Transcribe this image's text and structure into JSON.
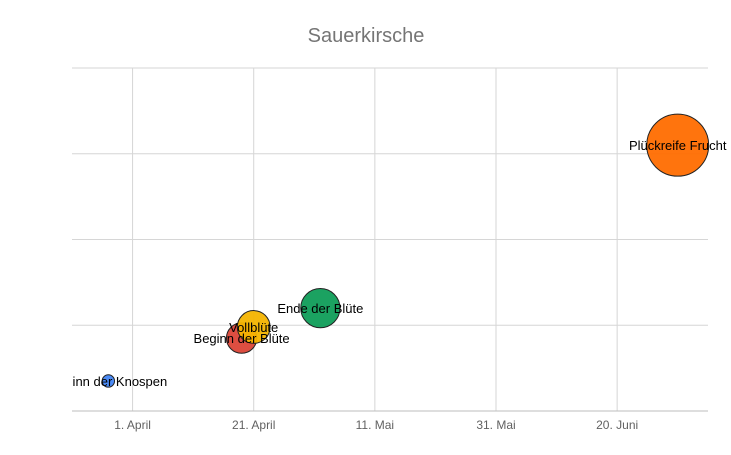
{
  "chart_data": {
    "type": "scatter",
    "subtype": "bubble",
    "title": "Sauerkirsche",
    "xlabel": "",
    "ylabel": "",
    "x_ticks": [
      "1. April",
      "21. April",
      "11. Mai",
      "31. Mai",
      "20. Juni"
    ],
    "xlim": [
      "2020-03-22",
      "2020-07-05"
    ],
    "ylim": [
      0,
      4
    ],
    "y_gridlines": [
      0,
      1,
      2,
      3,
      4
    ],
    "grid": true,
    "legend": "none",
    "points": [
      {
        "label": "Beginn der Knospen",
        "x": "2020-03-28",
        "y": 0.35,
        "size": 1,
        "color": "#4285f4"
      },
      {
        "label": "Beginn der Blüte",
        "x": "2020-04-19",
        "y": 0.85,
        "size": 6,
        "color": "#db4437"
      },
      {
        "label": "Vollblüte",
        "x": "2020-04-21",
        "y": 0.98,
        "size": 7,
        "color": "#f4b400"
      },
      {
        "label": "Ende der Blüte",
        "x": "2020-05-02",
        "y": 1.2,
        "size": 10,
        "color": "#0f9d58"
      },
      {
        "label": "Plückreife Frucht",
        "x": "2020-06-30",
        "y": 3.1,
        "size": 25,
        "color": "#ff6d00"
      }
    ]
  }
}
